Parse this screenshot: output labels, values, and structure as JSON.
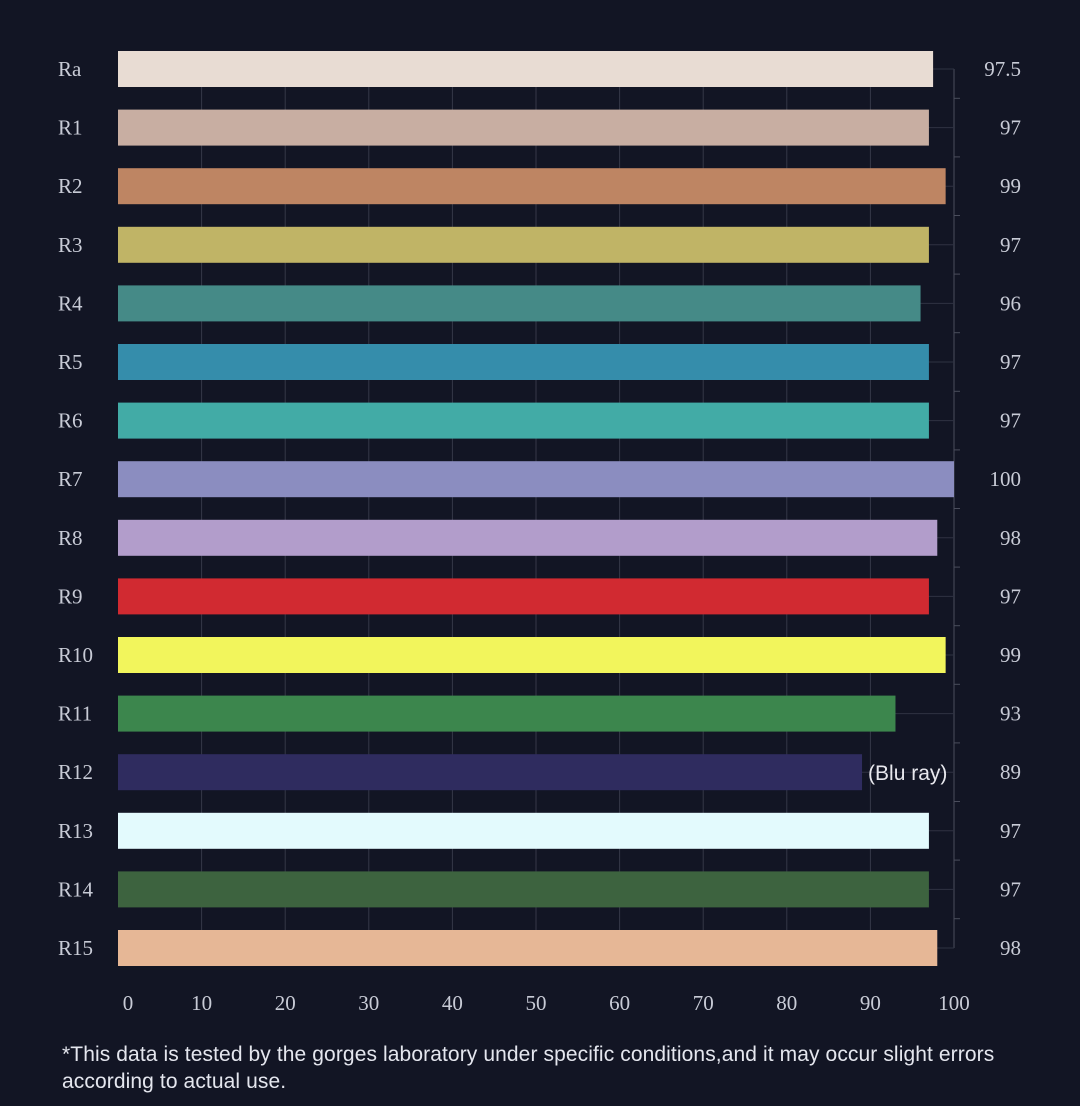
{
  "chart_data": {
    "type": "bar",
    "orientation": "horizontal",
    "categories": [
      "Ra",
      "R1",
      "R2",
      "R3",
      "R4",
      "R5",
      "R6",
      "R7",
      "R8",
      "R9",
      "R10",
      "R11",
      "R12",
      "R13",
      "R14",
      "R15"
    ],
    "values": [
      97.5,
      97,
      99,
      97,
      96,
      97,
      97,
      100,
      98,
      97,
      99,
      93,
      89,
      97,
      97,
      98
    ],
    "value_labels": [
      "97.5",
      "97",
      "99",
      "97",
      "96",
      "97",
      "97",
      "100",
      "98",
      "97",
      "99",
      "93",
      "89",
      "97",
      "97",
      "98"
    ],
    "colors": [
      "#e8dcd3",
      "#c8aea2",
      "#be8563",
      "#c0b466",
      "#458a87",
      "#358dab",
      "#42aba6",
      "#8b8dc0",
      "#b29dcb",
      "#d12a31",
      "#f2f55c",
      "#3c864d",
      "#2f2c5f",
      "#e3fafd",
      "#3d633f",
      "#e6b796"
    ],
    "xlim": [
      0,
      100
    ],
    "xticks": [
      "0",
      "10",
      "20",
      "30",
      "40",
      "50",
      "60",
      "70",
      "80",
      "90",
      "100"
    ],
    "grid": true,
    "annotations": [
      {
        "category": "R12",
        "text": "(Blu ray)"
      }
    ]
  },
  "footnote": "*This data is tested by the gorges laboratory under specific conditions,and it may occur slight errors according to actual use."
}
